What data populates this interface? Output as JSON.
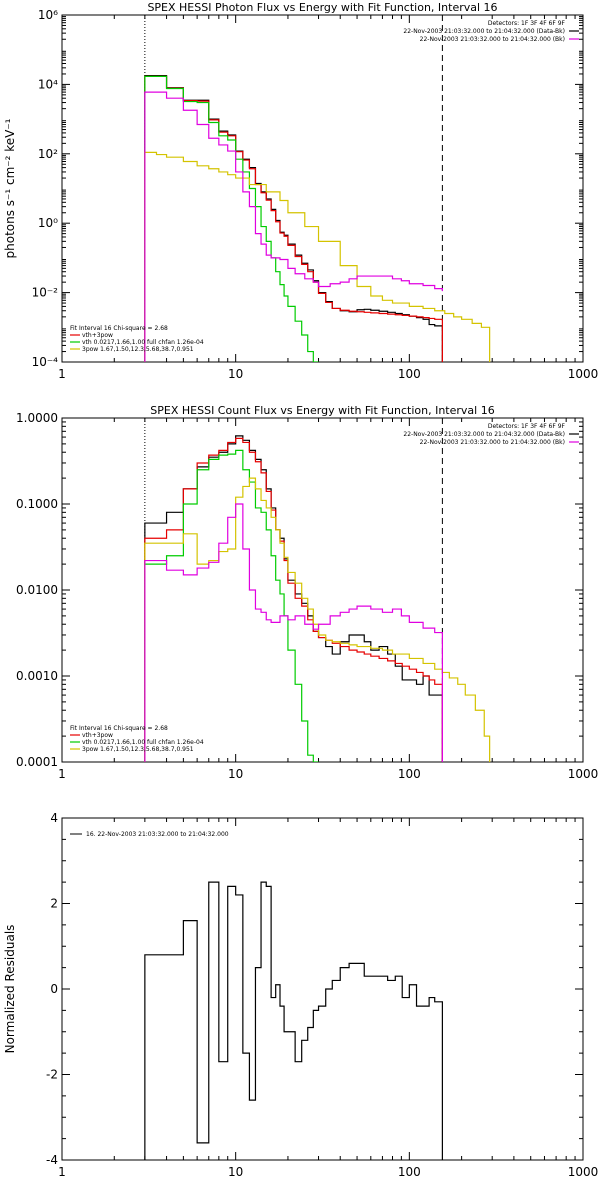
{
  "colors": {
    "data": "#000000",
    "total_fit": "#e60000",
    "thermal": "#00cc00",
    "power_law": "#d4c300",
    "background": "#e000e0",
    "guide": "#000000",
    "energy_low_line": "#ff8c00"
  },
  "chart_data": [
    {
      "type": "line",
      "title": "SPEX HESSI Photon Flux vs Energy with Fit Function, Interval 16",
      "xlabel": "",
      "ylabel": "photons s⁻¹ cm⁻² keV⁻¹",
      "xscale": "log",
      "yscale": "log",
      "xlim": [
        1,
        1000
      ],
      "ylim": [
        0.0001,
        1000000
      ],
      "x_ticks": [
        {
          "value": 1,
          "label": "1"
        },
        {
          "value": 10,
          "label": "10"
        },
        {
          "value": 100,
          "label": "100"
        },
        {
          "value": 1000,
          "label": "1000"
        }
      ],
      "y_ticks": [
        {
          "value": 0.0001,
          "label": "10⁻⁴"
        },
        {
          "value": 0.01,
          "label": "10⁻²"
        },
        {
          "value": 1,
          "label": "10⁰"
        },
        {
          "value": 100,
          "label": "10²"
        },
        {
          "value": 10000,
          "label": "10⁴"
        },
        {
          "value": 1000000,
          "label": "10⁶"
        }
      ],
      "legend_topright": [
        "Detectors: 1F 3F 4F 6F 9F",
        "22-Nov-2003 21:03:32.000 to 21:04:32.000 (Data-Bk)",
        "22-Nov-2003 21:03:32.000 to 21:04:32.000 (Bk)"
      ],
      "legend_bottomleft": [
        "Fit Interval 16    Chi-square = 2.68",
        "vth+3pow",
        "vth 0.0217,1.66,1.00  full chfan 1.26e-04",
        "3pow 1.67,1.50,12.3,5.68,38.7,0.951"
      ],
      "vlines": [
        3,
        155
      ],
      "series": [
        {
          "color_key": "data",
          "edges": [
            3,
            3.5,
            4,
            5,
            6,
            7,
            8,
            9,
            10,
            11,
            12,
            13,
            14,
            15,
            16,
            17,
            18,
            19,
            20,
            22,
            24,
            26,
            28,
            30,
            33,
            36,
            40,
            45,
            50,
            55,
            60,
            67,
            75,
            83,
            91,
            100,
            110,
            120,
            130,
            140,
            155
          ],
          "values": [
            18000,
            18000,
            8000,
            3500,
            3500,
            1000,
            450,
            350,
            120,
            70,
            40,
            14,
            8,
            5,
            2.5,
            1.2,
            0.55,
            0.45,
            0.25,
            0.12,
            0.07,
            0.045,
            0.022,
            0.01,
            0.0055,
            0.0035,
            0.003,
            0.0028,
            0.0032,
            0.0033,
            0.0031,
            0.0029,
            0.0027,
            0.0025,
            0.0023,
            0.0021,
            0.0019,
            0.0017,
            0.0012,
            0.0011
          ]
        },
        {
          "color_key": "total_fit",
          "edges": [
            3,
            3.5,
            4,
            5,
            6,
            7,
            8,
            9,
            10,
            11,
            12,
            13,
            14,
            15,
            16,
            17,
            18,
            19,
            20,
            22,
            24,
            26,
            28,
            30,
            33,
            36,
            40,
            45,
            50,
            55,
            60,
            67,
            75,
            83,
            91,
            100,
            110,
            120,
            130,
            140,
            155
          ],
          "values": [
            17000,
            17000,
            7800,
            3400,
            3300,
            950,
            420,
            330,
            115,
            66,
            37,
            13,
            7.5,
            4.6,
            2.3,
            1.1,
            0.52,
            0.42,
            0.23,
            0.11,
            0.065,
            0.04,
            0.02,
            0.0095,
            0.0052,
            0.0035,
            0.0031,
            0.0029,
            0.0028,
            0.0027,
            0.0026,
            0.0025,
            0.0024,
            0.0023,
            0.0022,
            0.0021,
            0.002,
            0.0019,
            0.0018,
            0.0017
          ]
        },
        {
          "color_key": "thermal",
          "edges": [
            3,
            3.5,
            4,
            5,
            6,
            7,
            8,
            9,
            10,
            11,
            12,
            13,
            14,
            15,
            16,
            17,
            18,
            19,
            20,
            22,
            24,
            26,
            28,
            30
          ],
          "values": [
            17000,
            17000,
            7600,
            3200,
            3000,
            800,
            330,
            250,
            70,
            30,
            10,
            3,
            0.8,
            0.3,
            0.1,
            0.04,
            0.017,
            0.008,
            0.004,
            0.0015,
            0.0006,
            0.0002,
            6e-05
          ]
        },
        {
          "color_key": "power_law",
          "edges": [
            3,
            3.5,
            4,
            5,
            6,
            7,
            8,
            9,
            10,
            12,
            15,
            18,
            20,
            25,
            30,
            40,
            50,
            60,
            70,
            80,
            100,
            120,
            140,
            160,
            180,
            200,
            230,
            260,
            290
          ],
          "values": [
            110,
            95,
            80,
            60,
            45,
            37,
            30,
            25,
            20,
            13,
            8,
            4.5,
            2,
            0.8,
            0.3,
            0.06,
            0.015,
            0.008,
            0.006,
            0.005,
            0.004,
            0.0035,
            0.003,
            0.0025,
            0.002,
            0.0017,
            0.0013,
            0.001
          ]
        },
        {
          "color_key": "background",
          "edges": [
            3,
            3.5,
            4,
            5,
            6,
            7,
            8,
            9,
            10,
            11,
            12,
            13,
            14,
            15,
            16,
            18,
            20,
            22,
            25,
            28,
            30,
            35,
            40,
            45,
            50,
            60,
            70,
            80,
            90,
            100,
            120,
            140,
            155
          ],
          "values": [
            6000,
            6000,
            4000,
            1800,
            700,
            280,
            180,
            120,
            30,
            8,
            3,
            0.5,
            0.25,
            0.12,
            0.1,
            0.09,
            0.05,
            0.035,
            0.025,
            0.02,
            0.015,
            0.018,
            0.02,
            0.025,
            0.03,
            0.03,
            0.03,
            0.025,
            0.022,
            0.018,
            0.016,
            0.013,
            0.011
          ]
        }
      ]
    },
    {
      "type": "line",
      "title": "SPEX HESSI Count Flux vs Energy with Fit Function, Interval 16",
      "xlabel": "",
      "ylabel": "",
      "xscale": "log",
      "yscale": "log",
      "xlim": [
        1,
        1000
      ],
      "ylim": [
        0.0001,
        1
      ],
      "x_ticks": [
        {
          "value": 1,
          "label": "1"
        },
        {
          "value": 10,
          "label": "10"
        },
        {
          "value": 100,
          "label": "100"
        },
        {
          "value": 1000,
          "label": "1000"
        }
      ],
      "y_ticks": [
        {
          "value": 0.0001,
          "label": "0.0001"
        },
        {
          "value": 0.001,
          "label": "0.0010"
        },
        {
          "value": 0.01,
          "label": "0.0100"
        },
        {
          "value": 0.1,
          "label": "0.1000"
        },
        {
          "value": 1,
          "label": "1.0000"
        }
      ],
      "legend_topright": [
        "Detectors: 1F 3F 4F 6F 9F",
        "22-Nov-2003 21:03:32.000 to 21:04:32.000 (Data-Bk)",
        "22-Nov-2003 21:03:32.000 to 21:04:32.000 (Bk)"
      ],
      "legend_bottomleft": [
        "Fit Interval 16    Chi-square = 2.68",
        "vth+3pow",
        "vth 0.0217,1.66,1.00  full chfan 1.26e-04",
        "3pow 1.67,1.50,12.3,5.68,38.7,0.951"
      ],
      "vlines": [
        3,
        155
      ],
      "series": [
        {
          "color_key": "data",
          "edges": [
            3,
            4,
            5,
            6,
            7,
            8,
            9,
            10,
            11,
            12,
            13,
            14,
            15,
            16,
            17,
            18,
            19,
            20,
            22,
            24,
            26,
            28,
            30,
            33,
            36,
            40,
            45,
            50,
            55,
            60,
            67,
            75,
            83,
            91,
            100,
            110,
            120,
            130,
            140,
            155
          ],
          "values": [
            0.06,
            0.08,
            0.15,
            0.27,
            0.35,
            0.4,
            0.5,
            0.62,
            0.55,
            0.42,
            0.33,
            0.25,
            0.15,
            0.09,
            0.05,
            0.04,
            0.023,
            0.013,
            0.009,
            0.007,
            0.005,
            0.0033,
            0.0028,
            0.0022,
            0.0018,
            0.0025,
            0.003,
            0.003,
            0.0025,
            0.002,
            0.0022,
            0.0018,
            0.0013,
            0.0009,
            0.0009,
            0.0008,
            0.001,
            0.0006,
            0.0006
          ]
        },
        {
          "color_key": "total_fit",
          "edges": [
            3,
            4,
            5,
            6,
            7,
            8,
            9,
            10,
            11,
            12,
            13,
            14,
            15,
            16,
            17,
            18,
            19,
            20,
            22,
            24,
            26,
            28,
            30,
            33,
            36,
            40,
            45,
            50,
            55,
            60,
            67,
            75,
            83,
            91,
            100,
            110,
            120,
            130,
            140,
            155
          ],
          "values": [
            0.04,
            0.05,
            0.15,
            0.3,
            0.37,
            0.42,
            0.52,
            0.58,
            0.52,
            0.4,
            0.31,
            0.23,
            0.14,
            0.085,
            0.05,
            0.037,
            0.022,
            0.012,
            0.008,
            0.0065,
            0.0045,
            0.0033,
            0.0028,
            0.0026,
            0.0024,
            0.0022,
            0.002,
            0.0019,
            0.0018,
            0.0017,
            0.0016,
            0.0015,
            0.0014,
            0.0013,
            0.0012,
            0.0011,
            0.001,
            0.0009,
            0.0008
          ]
        },
        {
          "color_key": "thermal",
          "edges": [
            3,
            4,
            5,
            6,
            7,
            8,
            9,
            10,
            11,
            12,
            13,
            14,
            15,
            16,
            17,
            18,
            19,
            20,
            22,
            24,
            26,
            28,
            30
          ],
          "values": [
            0.02,
            0.025,
            0.1,
            0.25,
            0.33,
            0.37,
            0.38,
            0.42,
            0.25,
            0.18,
            0.09,
            0.08,
            0.05,
            0.025,
            0.013,
            0.009,
            0.005,
            0.002,
            0.0008,
            0.0003,
            0.00012,
            5e-05
          ]
        },
        {
          "color_key": "power_law",
          "edges": [
            3,
            4,
            5,
            6,
            7,
            8,
            9,
            10,
            11,
            12,
            13,
            14,
            15,
            16,
            17,
            18,
            19,
            20,
            22,
            24,
            26,
            28,
            30,
            33,
            36,
            40,
            45,
            50,
            60,
            70,
            80,
            100,
            120,
            140,
            155,
            170,
            190,
            210,
            240,
            270,
            290
          ],
          "values": [
            0.035,
            0.035,
            0.045,
            0.02,
            0.022,
            0.028,
            0.03,
            0.12,
            0.16,
            0.2,
            0.15,
            0.11,
            0.09,
            0.07,
            0.05,
            0.035,
            0.024,
            0.016,
            0.012,
            0.008,
            0.006,
            0.004,
            0.003,
            0.0026,
            0.0025,
            0.0024,
            0.0023,
            0.0022,
            0.0021,
            0.002,
            0.0018,
            0.0016,
            0.0014,
            0.0012,
            0.0011,
            0.00095,
            0.0008,
            0.0006,
            0.0004,
            0.0002
          ]
        },
        {
          "color_key": "background",
          "edges": [
            3,
            4,
            5,
            6,
            7,
            8,
            9,
            10,
            11,
            12,
            13,
            14,
            15,
            16,
            18,
            20,
            22,
            25,
            28,
            30,
            35,
            40,
            45,
            50,
            60,
            70,
            80,
            90,
            100,
            120,
            140,
            155
          ],
          "values": [
            0.022,
            0.017,
            0.015,
            0.018,
            0.021,
            0.035,
            0.07,
            0.1,
            0.03,
            0.01,
            0.006,
            0.0055,
            0.0045,
            0.0042,
            0.005,
            0.0045,
            0.005,
            0.004,
            0.0035,
            0.004,
            0.005,
            0.0055,
            0.006,
            0.0065,
            0.006,
            0.0055,
            0.006,
            0.005,
            0.0042,
            0.0036,
            0.0032
          ]
        }
      ]
    },
    {
      "type": "line",
      "title": "",
      "xlabel": "",
      "ylabel": "Normalized Residuals",
      "xscale": "log",
      "yscale": "linear",
      "xlim": [
        1,
        1000
      ],
      "ylim": [
        -4,
        4
      ],
      "x_ticks": [
        {
          "value": 1,
          "label": "1"
        },
        {
          "value": 10,
          "label": "10"
        },
        {
          "value": 100,
          "label": "100"
        },
        {
          "value": 1000,
          "label": "1000"
        }
      ],
      "y_ticks": [
        {
          "value": -4,
          "label": "-4"
        },
        {
          "value": -2,
          "label": "-2"
        },
        {
          "value": 0,
          "label": "0"
        },
        {
          "value": 2,
          "label": "2"
        },
        {
          "value": 4,
          "label": "4"
        }
      ],
      "legend_topleft": [
        "16. 22-Nov-2003 21:03:32.000 to 21:04:32.000"
      ],
      "series": [
        {
          "color_key": "data",
          "edges": [
            3,
            4,
            5,
            6,
            7,
            8,
            9,
            10,
            11,
            12,
            13,
            14,
            15,
            16,
            17,
            18,
            19,
            20,
            22,
            24,
            26,
            28,
            30,
            33,
            36,
            40,
            45,
            50,
            55,
            60,
            67,
            75,
            83,
            91,
            100,
            110,
            120,
            130,
            140,
            155
          ],
          "values": [
            0.8,
            0.8,
            1.6,
            -3.6,
            2.5,
            -1.7,
            2.4,
            2.2,
            -1.5,
            -2.6,
            0.5,
            2.5,
            2.4,
            -0.2,
            0.1,
            -0.4,
            -1.0,
            -1.0,
            -1.7,
            -1.2,
            -0.9,
            -0.5,
            -0.4,
            0.0,
            0.2,
            0.5,
            0.6,
            0.6,
            0.3,
            0.3,
            0.3,
            0.2,
            0.3,
            -0.2,
            0.1,
            -0.4,
            -0.4,
            -0.2,
            -0.3
          ]
        }
      ]
    }
  ]
}
